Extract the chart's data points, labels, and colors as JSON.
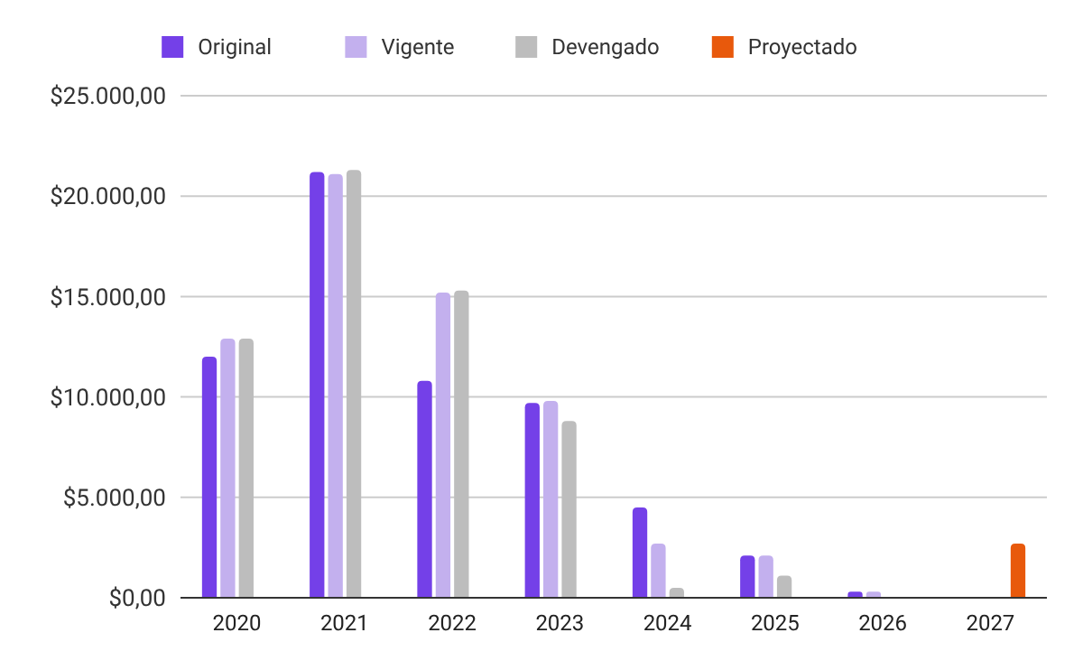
{
  "chart_data": {
    "type": "bar",
    "categories": [
      "2020",
      "2021",
      "2022",
      "2023",
      "2024",
      "2025",
      "2026",
      "2027"
    ],
    "series": [
      {
        "name": "Original",
        "color": "#7440e8",
        "values": [
          12000,
          21200,
          10800,
          9700,
          4500,
          2100,
          300,
          null
        ]
      },
      {
        "name": "Vigente",
        "color": "#c3b0ee",
        "values": [
          12900,
          21100,
          15200,
          9800,
          2700,
          2100,
          300,
          null
        ]
      },
      {
        "name": "Devengado",
        "color": "#bdbdbd",
        "values": [
          12900,
          21300,
          15300,
          8800,
          500,
          1100,
          null,
          null
        ]
      },
      {
        "name": "Proyectado",
        "color": "#e8590c",
        "values": [
          null,
          null,
          null,
          null,
          null,
          null,
          null,
          2700
        ]
      }
    ],
    "ylim": [
      0,
      25000
    ],
    "yticks": [
      {
        "value": 0,
        "label": "$0,00"
      },
      {
        "value": 5000,
        "label": "$5.000,00"
      },
      {
        "value": 10000,
        "label": "$10.000,00"
      },
      {
        "value": 15000,
        "label": "$15.000,00"
      },
      {
        "value": 20000,
        "label": "$20.000,00"
      },
      {
        "value": 25000,
        "label": "$25.000,00"
      }
    ],
    "grid": "y",
    "legend": "top"
  }
}
